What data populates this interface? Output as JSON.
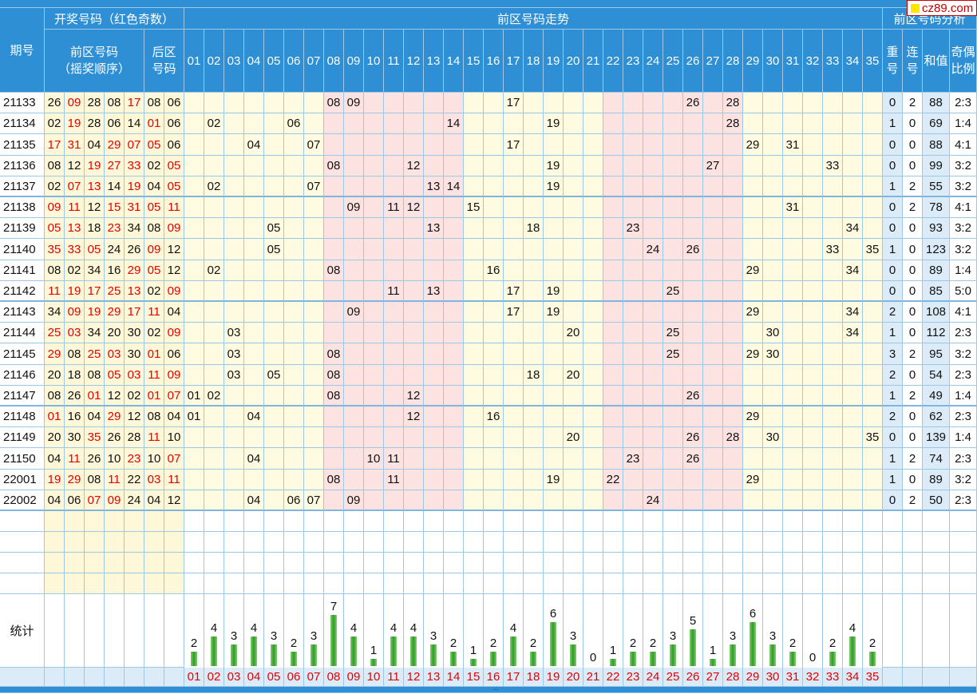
{
  "header": {
    "period": "期号",
    "draw_group": "开奖号码（红色奇数）",
    "front_draw": "前区号码",
    "front_draw_sub": "（摇奖顺序）",
    "back_draw": "后区",
    "back_draw_sub": "号码",
    "trend_group": "前区号码走势",
    "analysis_group": "前区号码分析",
    "repeat": "重号",
    "consecutive": "连号",
    "sum": "和值",
    "odd_even": "奇偶比例"
  },
  "columns": [
    "01",
    "02",
    "03",
    "04",
    "05",
    "06",
    "07",
    "08",
    "09",
    "10",
    "11",
    "12",
    "13",
    "14",
    "15",
    "16",
    "17",
    "18",
    "19",
    "20",
    "21",
    "22",
    "23",
    "24",
    "25",
    "26",
    "27",
    "28",
    "29",
    "30",
    "31",
    "32",
    "33",
    "34",
    "35"
  ],
  "rows": [
    {
      "period": "21133",
      "front": [
        "26",
        "09",
        "28",
        "08",
        "17"
      ],
      "back": [
        "08",
        "06"
      ],
      "repeat": "0",
      "consec": "2",
      "sum": "88",
      "ratio": "2:3"
    },
    {
      "period": "21134",
      "front": [
        "02",
        "19",
        "28",
        "06",
        "14"
      ],
      "back": [
        "01",
        "06"
      ],
      "repeat": "1",
      "consec": "0",
      "sum": "69",
      "ratio": "1:4"
    },
    {
      "period": "21135",
      "front": [
        "17",
        "31",
        "04",
        "29",
        "07"
      ],
      "back": [
        "05",
        "06"
      ],
      "repeat": "0",
      "consec": "0",
      "sum": "88",
      "ratio": "4:1"
    },
    {
      "period": "21136",
      "front": [
        "08",
        "12",
        "19",
        "27",
        "33"
      ],
      "back": [
        "02",
        "05"
      ],
      "repeat": "0",
      "consec": "0",
      "sum": "99",
      "ratio": "3:2"
    },
    {
      "period": "21137",
      "front": [
        "02",
        "07",
        "13",
        "14",
        "19"
      ],
      "back": [
        "04",
        "05"
      ],
      "repeat": "1",
      "consec": "2",
      "sum": "55",
      "ratio": "3:2"
    },
    {
      "period": "21138",
      "front": [
        "09",
        "11",
        "12",
        "15",
        "31"
      ],
      "back": [
        "05",
        "11"
      ],
      "repeat": "0",
      "consec": "2",
      "sum": "78",
      "ratio": "4:1"
    },
    {
      "period": "21139",
      "front": [
        "05",
        "13",
        "18",
        "23",
        "34"
      ],
      "back": [
        "08",
        "09"
      ],
      "repeat": "0",
      "consec": "0",
      "sum": "93",
      "ratio": "3:2"
    },
    {
      "period": "21140",
      "front": [
        "35",
        "33",
        "05",
        "24",
        "26"
      ],
      "back": [
        "09",
        "12"
      ],
      "repeat": "1",
      "consec": "0",
      "sum": "123",
      "ratio": "3:2"
    },
    {
      "period": "21141",
      "front": [
        "08",
        "02",
        "34",
        "16",
        "29"
      ],
      "back": [
        "05",
        "12"
      ],
      "repeat": "0",
      "consec": "0",
      "sum": "89",
      "ratio": "1:4"
    },
    {
      "period": "21142",
      "front": [
        "11",
        "19",
        "17",
        "25",
        "13"
      ],
      "back": [
        "02",
        "09"
      ],
      "repeat": "0",
      "consec": "0",
      "sum": "85",
      "ratio": "5:0"
    },
    {
      "period": "21143",
      "front": [
        "34",
        "09",
        "19",
        "29",
        "17"
      ],
      "back": [
        "11",
        "04"
      ],
      "repeat": "2",
      "consec": "0",
      "sum": "108",
      "ratio": "4:1"
    },
    {
      "period": "21144",
      "front": [
        "25",
        "03",
        "34",
        "20",
        "30"
      ],
      "back": [
        "02",
        "09"
      ],
      "repeat": "1",
      "consec": "0",
      "sum": "112",
      "ratio": "2:3"
    },
    {
      "period": "21145",
      "front": [
        "29",
        "08",
        "25",
        "03",
        "30"
      ],
      "back": [
        "01",
        "06"
      ],
      "repeat": "3",
      "consec": "2",
      "sum": "95",
      "ratio": "3:2"
    },
    {
      "period": "21146",
      "front": [
        "20",
        "18",
        "08",
        "05",
        "03"
      ],
      "back": [
        "11",
        "09"
      ],
      "repeat": "2",
      "consec": "0",
      "sum": "54",
      "ratio": "2:3"
    },
    {
      "period": "21147",
      "front": [
        "08",
        "26",
        "01",
        "12",
        "02"
      ],
      "back": [
        "01",
        "07"
      ],
      "repeat": "1",
      "consec": "2",
      "sum": "49",
      "ratio": "1:4"
    },
    {
      "period": "21148",
      "front": [
        "01",
        "16",
        "04",
        "29",
        "12"
      ],
      "back": [
        "08",
        "04"
      ],
      "repeat": "2",
      "consec": "0",
      "sum": "62",
      "ratio": "2:3"
    },
    {
      "period": "21149",
      "front": [
        "20",
        "30",
        "35",
        "26",
        "28"
      ],
      "back": [
        "11",
        "10"
      ],
      "repeat": "0",
      "consec": "0",
      "sum": "139",
      "ratio": "1:4"
    },
    {
      "period": "21150",
      "front": [
        "04",
        "11",
        "26",
        "10",
        "23"
      ],
      "back": [
        "10",
        "07"
      ],
      "repeat": "1",
      "consec": "2",
      "sum": "74",
      "ratio": "2:3"
    },
    {
      "period": "22001",
      "front": [
        "19",
        "29",
        "08",
        "11",
        "22"
      ],
      "back": [
        "03",
        "11"
      ],
      "repeat": "1",
      "consec": "0",
      "sum": "89",
      "ratio": "3:2"
    },
    {
      "period": "22002",
      "front": [
        "04",
        "06",
        "07",
        "09",
        "24"
      ],
      "back": [
        "04",
        "12"
      ],
      "repeat": "0",
      "consec": "2",
      "sum": "50",
      "ratio": "2:3"
    }
  ],
  "stats": {
    "label": "统计",
    "counts": [
      "2",
      "4",
      "3",
      "4",
      "3",
      "2",
      "3",
      "7",
      "4",
      "1",
      "4",
      "4",
      "3",
      "2",
      "1",
      "2",
      "4",
      "2",
      "6",
      "3",
      "0",
      "1",
      "2",
      "2",
      "3",
      "5",
      "1",
      "3",
      "6",
      "3",
      "2",
      "0",
      "2",
      "4",
      "2"
    ]
  },
  "logo": "cz89.com",
  "footer_mark": "··",
  "colors": {
    "header": "#2e8fd4",
    "odd": "#e60000",
    "draw_bg": "#fff8d8",
    "trend_yellow": "#fffbe0",
    "trend_pink": "#fde2e2",
    "bar": "#2f9a2a"
  }
}
